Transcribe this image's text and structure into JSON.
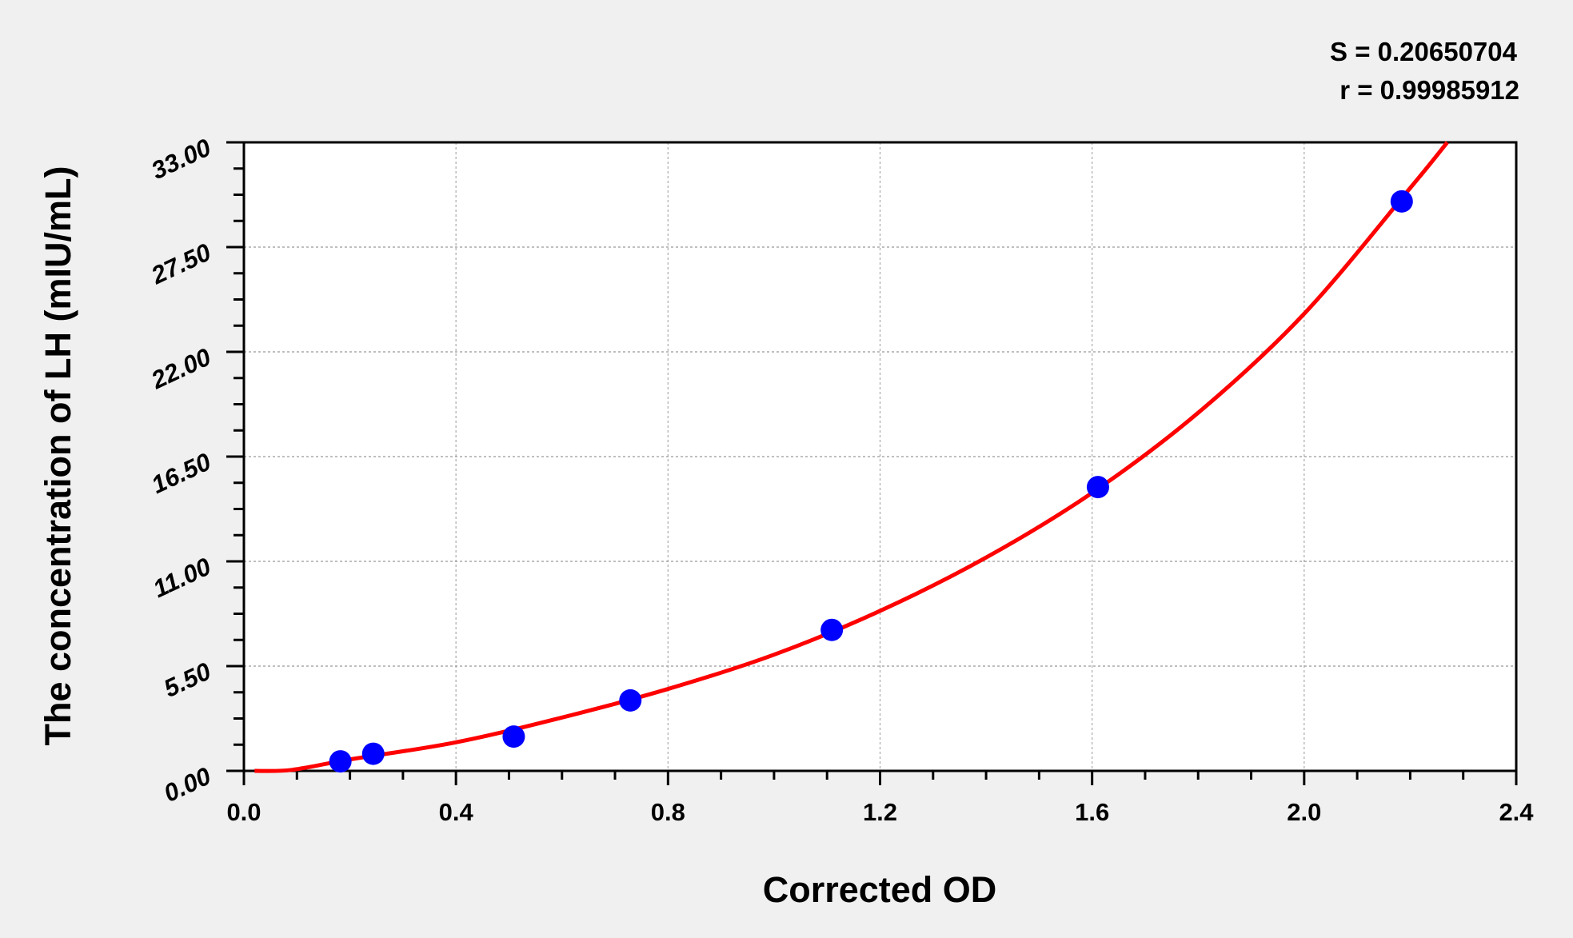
{
  "chart_data": {
    "type": "scatter",
    "title": "",
    "xlabel": "Corrected OD",
    "ylabel": "The concentration of LH (mIU/mL)",
    "xlim": [
      0.0,
      2.4
    ],
    "ylim": [
      0.0,
      33.0
    ],
    "x_ticks": [
      "0.0",
      "0.4",
      "0.8",
      "1.2",
      "1.6",
      "2.0",
      "2.4"
    ],
    "y_ticks": [
      "0.00",
      "5.50",
      "11.00",
      "16.50",
      "22.00",
      "27.50",
      "33.00"
    ],
    "grid": true,
    "annotations": [
      "S = 0.20650704",
      "r = 0.99985912"
    ],
    "colors": {
      "points": "#0000ff",
      "fit_line": "#ff0000",
      "plot_bg": "#ffffff",
      "page_bg": "#f0f0f0"
    },
    "points": [
      {
        "x": 0.182,
        "y": 0.5
      },
      {
        "x": 0.244,
        "y": 0.9
      },
      {
        "x": 0.509,
        "y": 1.8
      },
      {
        "x": 0.729,
        "y": 3.7
      },
      {
        "x": 1.109,
        "y": 7.4
      },
      {
        "x": 1.611,
        "y": 14.9
      },
      {
        "x": 2.184,
        "y": 29.9
      }
    ],
    "fit_curve": [
      {
        "x": 0.02,
        "y": 0.0
      },
      {
        "x": 0.09,
        "y": 0.05
      },
      {
        "x": 0.2,
        "y": 0.6
      },
      {
        "x": 0.4,
        "y": 1.5
      },
      {
        "x": 0.6,
        "y": 2.8
      },
      {
        "x": 0.8,
        "y": 4.3
      },
      {
        "x": 1.0,
        "y": 6.1
      },
      {
        "x": 1.2,
        "y": 8.4
      },
      {
        "x": 1.4,
        "y": 11.2
      },
      {
        "x": 1.6,
        "y": 14.6
      },
      {
        "x": 1.8,
        "y": 18.8
      },
      {
        "x": 2.0,
        "y": 24.0
      },
      {
        "x": 2.2,
        "y": 30.6
      },
      {
        "x": 2.27,
        "y": 33.0
      }
    ]
  }
}
